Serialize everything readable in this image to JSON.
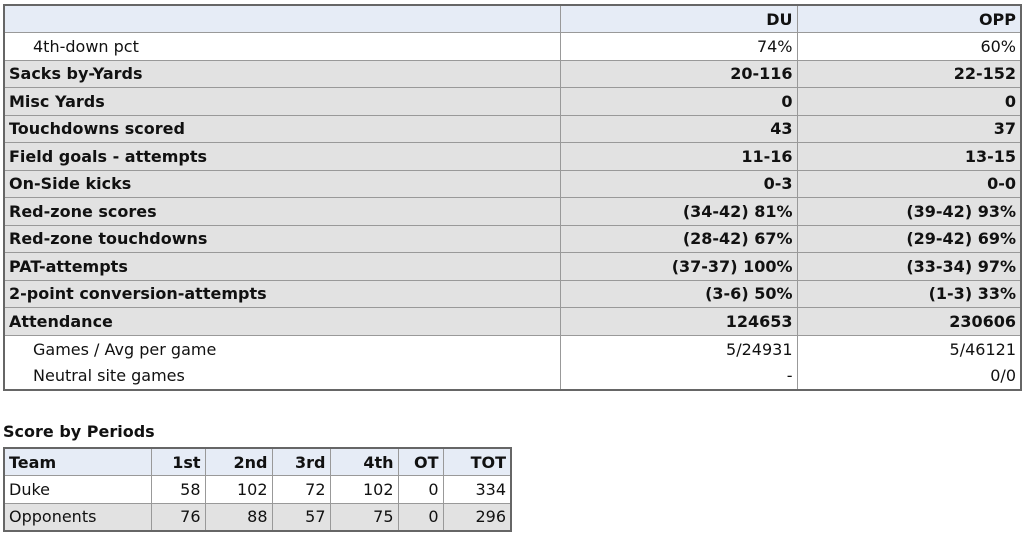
{
  "stats_table": {
    "columns": [
      "DU",
      "OPP"
    ],
    "rows": [
      {
        "label": "4th-down pct",
        "du": "74%",
        "opp": "60%"
      },
      {
        "label": "Sacks by-Yards",
        "du": "20-116",
        "opp": "22-152"
      },
      {
        "label": "Misc Yards",
        "du": "0",
        "opp": "0"
      },
      {
        "label": "Touchdowns scored",
        "du": "43",
        "opp": "37"
      },
      {
        "label": "Field goals - attempts",
        "du": "11-16",
        "opp": "13-15"
      },
      {
        "label": "On-Side kicks",
        "du": "0-3",
        "opp": "0-0"
      },
      {
        "label": "Red-zone scores",
        "du": "(34-42) 81%",
        "opp": "(39-42) 93%"
      },
      {
        "label": "Red-zone touchdowns",
        "du": "(28-42) 67%",
        "opp": "(29-42) 69%"
      },
      {
        "label": "PAT-attempts",
        "du": "(37-37) 100%",
        "opp": "(33-34) 97%"
      },
      {
        "label": "2-point conversion-attempts",
        "du": "(3-6) 50%",
        "opp": "(1-3) 33%"
      },
      {
        "label": "Attendance",
        "du": "124653",
        "opp": "230606"
      },
      {
        "label": "Games / Avg per game",
        "du": "5/24931",
        "opp": "5/46121"
      },
      {
        "label": "Neutral site games",
        "du": "-",
        "opp": "0/0"
      }
    ]
  },
  "score_table": {
    "title": "Score by Periods",
    "header": [
      "Team",
      "1st",
      "2nd",
      "3rd",
      "4th",
      "OT",
      "TOT"
    ],
    "rows": [
      [
        "Duke",
        58,
        102,
        72,
        102,
        0,
        334
      ],
      [
        "Opponents",
        76,
        88,
        57,
        75,
        0,
        296
      ]
    ]
  }
}
